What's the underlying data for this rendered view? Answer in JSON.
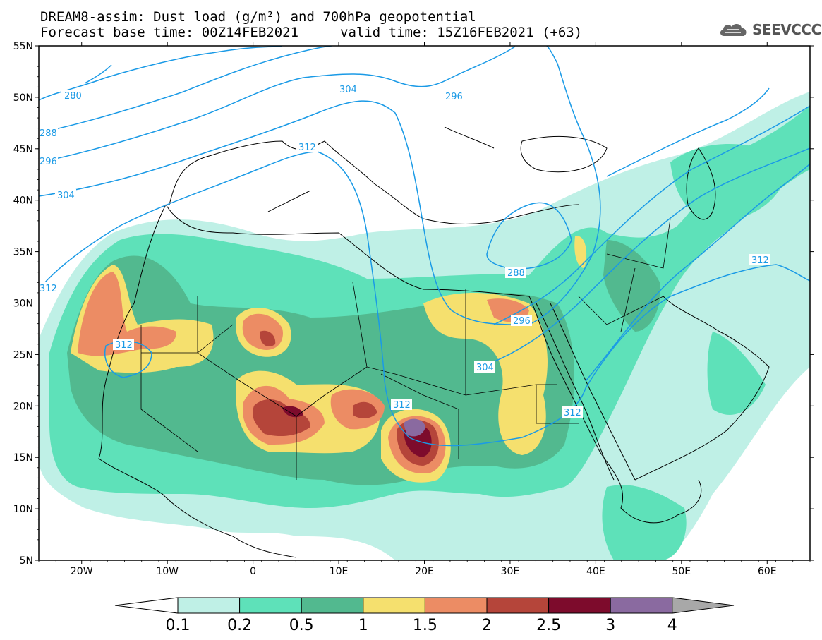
{
  "header": {
    "title_line1": "DREAM8-assim: Dust load (g/m²) and 700hPa geopotential",
    "title_line2_left": "Forecast base time: 00Z14FEB2021",
    "title_line2_right": "valid time: 15Z16FEB2021 (+63)",
    "logo_text": "SEEVCCC"
  },
  "axes": {
    "lat_labels": [
      "55N",
      "50N",
      "45N",
      "40N",
      "35N",
      "30N",
      "25N",
      "20N",
      "15N",
      "10N",
      "5N"
    ],
    "lon_labels": [
      "20W",
      "10W",
      "0",
      "10E",
      "20E",
      "30E",
      "40E",
      "50E",
      "60E"
    ],
    "lon_range": [
      -25,
      65
    ],
    "lat_range": [
      5,
      55
    ]
  },
  "contours": {
    "color": "#1a9ae6",
    "labels": [
      "280",
      "288",
      "296",
      "304",
      "312",
      "304",
      "312",
      "296",
      "312",
      "296",
      "304",
      "312",
      "288",
      "312",
      "312"
    ]
  },
  "colorbar": {
    "labels": [
      "0.1",
      "0.2",
      "0.5",
      "1",
      "1.5",
      "2",
      "2.5",
      "3",
      "4"
    ],
    "colors": [
      "#ffffff",
      "#bff0e6",
      "#5ee1b9",
      "#52b98f",
      "#f5e06e",
      "#ec8c64",
      "#b5453a",
      "#7d0b2c",
      "#8a6aa0",
      "#a8a8a8"
    ]
  }
}
